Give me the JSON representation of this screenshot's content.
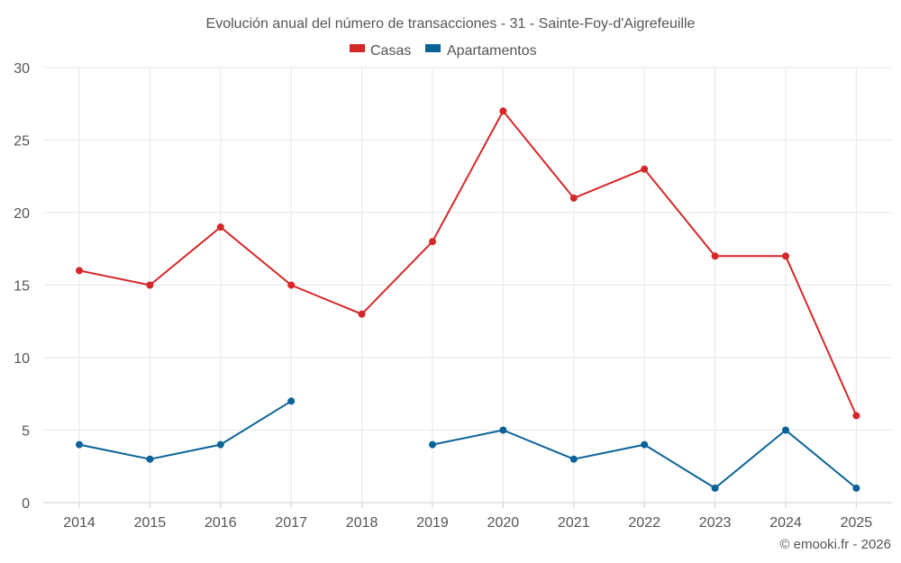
{
  "chart_data": {
    "type": "line",
    "title": "Evolución anual del número de transacciones - 31 - Sainte-Foy-d'Aigrefeuille",
    "categories": [
      "2014",
      "2015",
      "2016",
      "2017",
      "2018",
      "2019",
      "2020",
      "2021",
      "2022",
      "2023",
      "2024",
      "2025"
    ],
    "ylim": [
      0,
      30
    ],
    "yticks": [
      0,
      5,
      10,
      15,
      20,
      25,
      30
    ],
    "grid": true,
    "legend_position": "top-center",
    "series": [
      {
        "name": "Casas",
        "color": "#d62728",
        "values": [
          16,
          15,
          19,
          15,
          13,
          18,
          27,
          21,
          23,
          17,
          17,
          6
        ]
      },
      {
        "name": "Apartamentos",
        "color": "#0a6398",
        "values": [
          4,
          3,
          4,
          7,
          null,
          4,
          5,
          3,
          4,
          1,
          5,
          1
        ]
      }
    ],
    "credit": "© emooki.fr - 2026"
  }
}
